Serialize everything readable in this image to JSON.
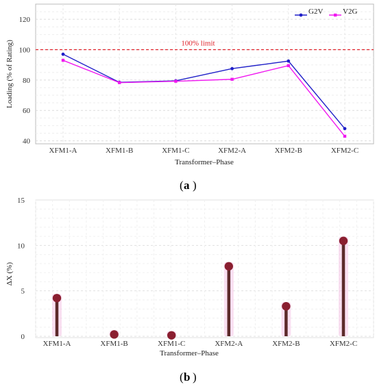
{
  "chart_data": [
    {
      "type": "line",
      "panel_label": "a",
      "xlabel": "Transformer–Phase",
      "ylabel": "Loading (% of Rating)",
      "categories": [
        "XFM1-A",
        "XFM1-B",
        "XFM1-C",
        "XFM2-A",
        "XFM2-B",
        "XFM2-C"
      ],
      "ylim": [
        38,
        130
      ],
      "yticks": [
        40,
        60,
        80,
        100,
        120
      ],
      "grid": true,
      "legend_position": "top-right",
      "series": [
        {
          "name": "G2V",
          "color": "#1f1fc8",
          "marker": "circle",
          "values": [
            97,
            78.5,
            79.5,
            87.5,
            92.5,
            48
          ]
        },
        {
          "name": "V2G",
          "color": "#f019f0",
          "marker": "square",
          "values": [
            93,
            78.3,
            79.2,
            80.5,
            89.5,
            43
          ]
        }
      ],
      "reference_line": {
        "value": 100,
        "label": "100% limit",
        "color": "#e0222a",
        "style": "dashed"
      }
    },
    {
      "type": "bar",
      "panel_label": "b",
      "xlabel": "Transformer–Phase",
      "ylabel": "ΔX (%)",
      "categories": [
        "XFM1-A",
        "XFM1-B",
        "XFM1-C",
        "XFM2-A",
        "XFM2-B",
        "XFM2-C"
      ],
      "values": [
        4.2,
        0.2,
        0.1,
        7.7,
        3.3,
        10.5
      ],
      "ylim": [
        0,
        15
      ],
      "yticks": [
        0,
        5,
        10,
        15
      ],
      "grid": true,
      "style": "lollipop",
      "stem_color": "#5c2a2a",
      "marker_color": "#8a1f30",
      "halo_color": "#f6c6e8"
    }
  ]
}
